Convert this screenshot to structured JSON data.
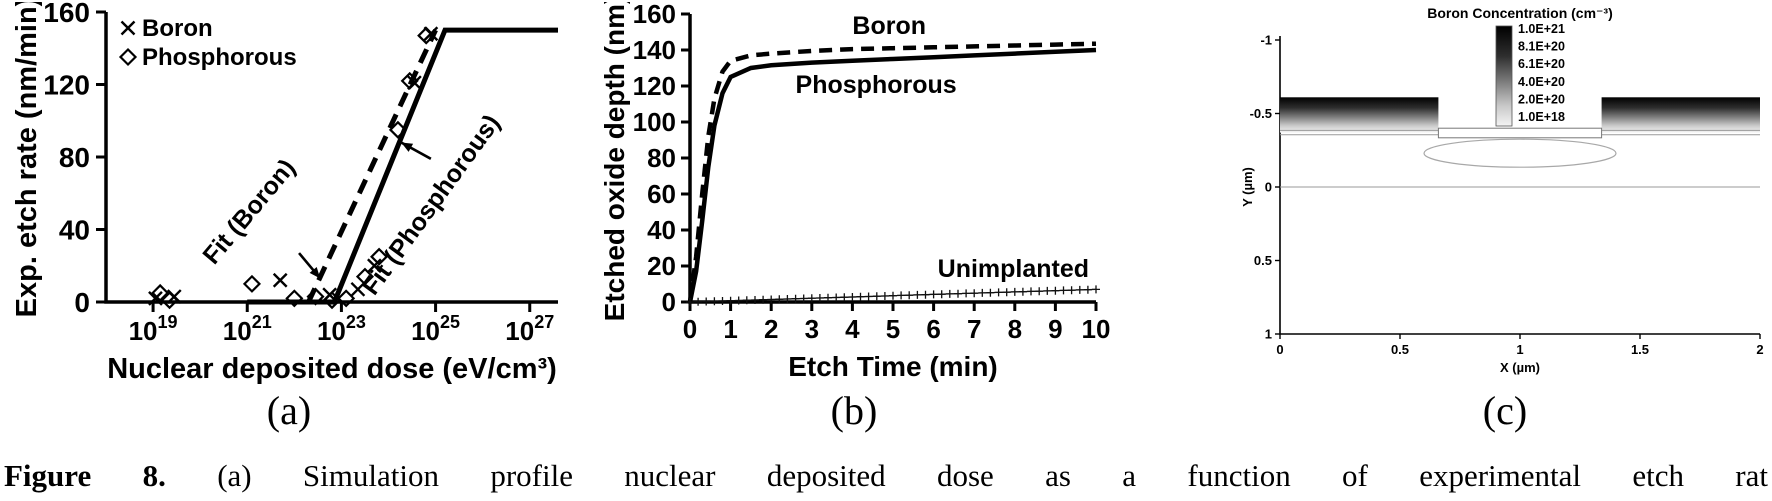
{
  "figure": {
    "panel_labels": [
      "(a)",
      "(b)",
      "(c)"
    ],
    "caption": {
      "label": "Figure 8.",
      "text": "(a) Simulation profile nuclear deposited dose as a function of experimental etch rat"
    }
  },
  "chart_data": [
    {
      "id": "a",
      "type": "scatter",
      "xlabel": "Nuclear deposited dose (eV/cm³)",
      "ylabel": "Exp. etch rate (nm/min)",
      "x_scale": "log10",
      "x_domain_log10": [
        18,
        27.6
      ],
      "x_tick_exponents": [
        19,
        21,
        23,
        25,
        27
      ],
      "ylim": [
        0,
        160
      ],
      "y_ticks": [
        0,
        40,
        80,
        120,
        160
      ],
      "legend": [
        {
          "label": "Boron",
          "marker": "cross"
        },
        {
          "label": "Phosphorous",
          "marker": "diamond"
        }
      ],
      "series": [
        {
          "name": "Boron",
          "marker": "cross",
          "points_log10x": [
            [
              19.05,
              2
            ],
            [
              19.45,
              3
            ],
            [
              21.7,
              12
            ],
            [
              22.75,
              4
            ],
            [
              23.35,
              7
            ],
            [
              23.7,
              20
            ],
            [
              24.55,
              121
            ],
            [
              24.9,
              148
            ]
          ]
        },
        {
          "name": "Phosphorous",
          "marker": "diamond",
          "points_log10x": [
            [
              19.15,
              5
            ],
            [
              19.35,
              1
            ],
            [
              21.1,
              10
            ],
            [
              22.0,
              2
            ],
            [
              22.45,
              3
            ],
            [
              22.8,
              1
            ],
            [
              23.1,
              2
            ],
            [
              23.5,
              14
            ],
            [
              23.8,
              25
            ],
            [
              24.2,
              95
            ],
            [
              24.45,
              122
            ],
            [
              24.8,
              147
            ]
          ]
        }
      ],
      "fit_lines": [
        {
          "name": "Fit (Boron)",
          "style": "dashed",
          "points_log10x": [
            [
              22.3,
              0
            ],
            [
              25.0,
              150
            ]
          ]
        },
        {
          "name": "Fit (Phosphorous)",
          "style": "solid",
          "points_log10x": [
            [
              21.0,
              0
            ],
            [
              22.85,
              0
            ],
            [
              25.2,
              150
            ],
            [
              27.6,
              150
            ]
          ]
        }
      ],
      "annotations": [
        {
          "label": "Fit (Boron)",
          "x_log10": 20.3,
          "y": 20,
          "rotation": -50,
          "arrow": {
            "from": [
              22.1,
              27
            ],
            "to": [
              22.55,
              13
            ]
          }
        },
        {
          "label": "Fit (Phosphorous)",
          "x_log10": 23.7,
          "y": 3,
          "rotation": -54,
          "arrow": {
            "from": [
              24.9,
              79
            ],
            "to": [
              24.27,
              88
            ]
          }
        }
      ]
    },
    {
      "id": "b",
      "type": "line",
      "xlabel": "Etch Time (min)",
      "ylabel": "Etched oxide depth (nm)",
      "xlim": [
        0,
        10
      ],
      "x_ticks": [
        0,
        1,
        2,
        3,
        4,
        5,
        6,
        7,
        8,
        9,
        10
      ],
      "ylim": [
        0,
        160
      ],
      "y_ticks": [
        0,
        20,
        40,
        60,
        80,
        100,
        120,
        140,
        160
      ],
      "series": [
        {
          "name": "Boron",
          "style": "dashed",
          "points": [
            [
              0,
              0
            ],
            [
              0.15,
              25
            ],
            [
              0.3,
              60
            ],
            [
              0.45,
              92
            ],
            [
              0.6,
              113
            ],
            [
              0.8,
              128
            ],
            [
              1,
              134
            ],
            [
              1.5,
              137
            ],
            [
              2,
              138
            ],
            [
              3,
              139.5
            ],
            [
              4,
              140.5
            ],
            [
              5,
              141
            ],
            [
              6,
              141.5
            ],
            [
              7,
              142
            ],
            [
              8,
              142.5
            ],
            [
              9,
              143
            ],
            [
              10,
              143.5
            ]
          ]
        },
        {
          "name": "Phosphorous",
          "style": "solid",
          "points": [
            [
              0,
              0
            ],
            [
              0.15,
              17
            ],
            [
              0.3,
              45
            ],
            [
              0.45,
              75
            ],
            [
              0.6,
              98
            ],
            [
              0.8,
              116
            ],
            [
              1,
              125
            ],
            [
              1.5,
              130
            ],
            [
              2,
              131.5
            ],
            [
              3,
              133
            ],
            [
              4,
              134
            ],
            [
              5,
              135
            ],
            [
              6,
              136
            ],
            [
              7,
              137
            ],
            [
              8,
              138
            ],
            [
              9,
              139
            ],
            [
              10,
              140
            ]
          ]
        },
        {
          "name": "Unimplanted",
          "style": "plus-markers",
          "points": [
            [
              0,
              0
            ],
            [
              1,
              0.7
            ],
            [
              2,
              1.4
            ],
            [
              3,
              2.1
            ],
            [
              4,
              2.8
            ],
            [
              5,
              3.5
            ],
            [
              6,
              4.2
            ],
            [
              7,
              4.9
            ],
            [
              8,
              5.6
            ],
            [
              9,
              6.3
            ],
            [
              10,
              7
            ]
          ]
        }
      ],
      "annotations": [
        {
          "label": "Boron",
          "x": 4.0,
          "y": 149
        },
        {
          "label": "Phosphorous",
          "x": 2.6,
          "y": 116
        },
        {
          "label": "Unimplanted",
          "x": 6.1,
          "y": 14
        }
      ]
    },
    {
      "id": "c",
      "type": "heatmap",
      "colorbar": {
        "title": "Boron Concentration (cm⁻³)",
        "tick_labels": [
          "1.0E+21",
          "8.1E+20",
          "6.1E+20",
          "4.0E+20",
          "2.0E+20",
          "1.0E+18"
        ]
      },
      "xlabel": "X (µm)",
      "ylabel": "Y (µm)",
      "xlim": [
        0,
        2
      ],
      "ylim": [
        -1,
        1
      ],
      "y_axis_inverted": true,
      "x_ticks": [
        0,
        0.5,
        1,
        1.5,
        2
      ],
      "y_ticks": [
        -1,
        -0.5,
        0,
        0.5,
        1
      ],
      "features": {
        "implant_bands": [
          {
            "x": [
              0,
              0.66
            ],
            "y": [
              -0.61,
              -0.37
            ]
          },
          {
            "x": [
              1.34,
              2
            ],
            "y": [
              -0.61,
              -0.37
            ]
          }
        ],
        "trench": {
          "x": [
            0.66,
            1.34
          ],
          "y": [
            -0.4,
            -0.335
          ]
        },
        "junction_contour": {
          "cx": 1.0,
          "cy": -0.23,
          "rx": 0.4,
          "ry": 0.095
        },
        "interface_lines_y": [
          -0.385,
          -0.355,
          0
        ]
      }
    }
  ]
}
